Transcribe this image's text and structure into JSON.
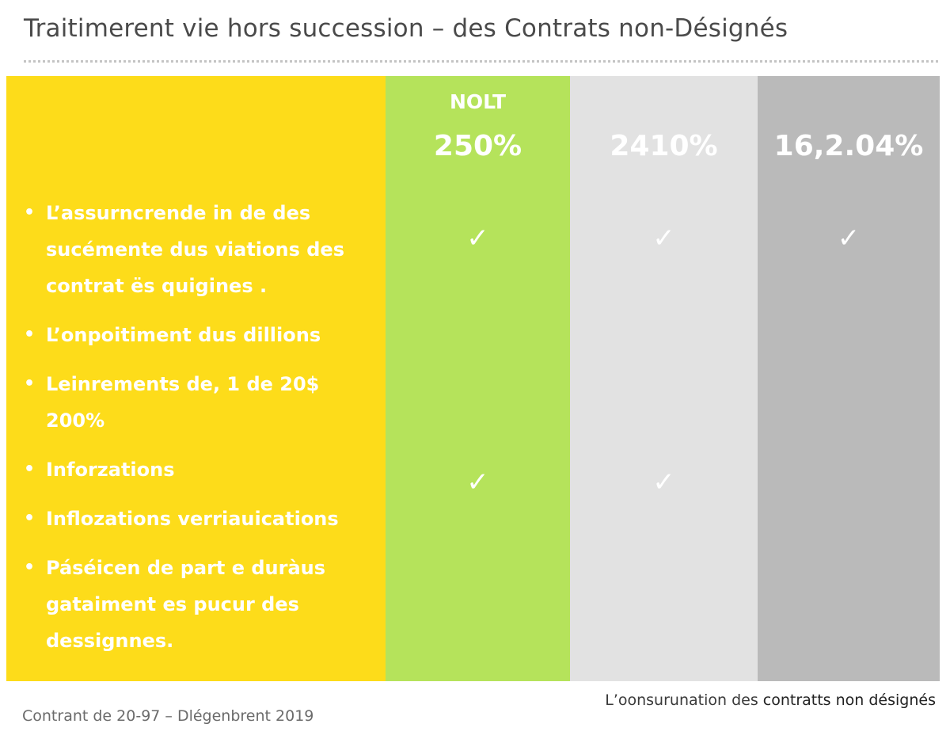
{
  "title": "Traitimerent vie hors succession – des Contrats non-Désignés",
  "columns": [
    {
      "label": "NOLT",
      "value": "250%",
      "color": "#b5e35b"
    },
    {
      "label": "",
      "value": "2410%",
      "color": "#e2e2e2"
    },
    {
      "label": "",
      "value": "16,2.04%",
      "color": "#bababa"
    }
  ],
  "features_color": "#fddc1a",
  "features": [
    {
      "text": "L’assurncrende in de des sucémente dus viations des contrat ës quigines .",
      "checks": [
        true,
        true,
        true
      ]
    },
    {
      "text": "L’onpoitiment dus dillions",
      "checks": [
        false,
        false,
        false
      ]
    },
    {
      "text": "Leinrements de, 1 de 20$ 200%",
      "checks": [
        false,
        false,
        false
      ]
    },
    {
      "text": "Inforzations",
      "checks": [
        false,
        false,
        false
      ]
    },
    {
      "text": "Inflozations verriauications",
      "checks": [
        true,
        true,
        false
      ]
    },
    {
      "text": "Páséicen de part e duràus gataiment es pucur des dessignnes.",
      "checks": [
        false,
        false,
        false
      ]
    }
  ],
  "check_glyph": "✓",
  "footnote_left": "Contrant de 20-97 – Dlégenbrent 2019",
  "footnote_right_prefix": "L’oonsurunation des ",
  "footnote_right_emphasis": "contratts non désignés"
}
